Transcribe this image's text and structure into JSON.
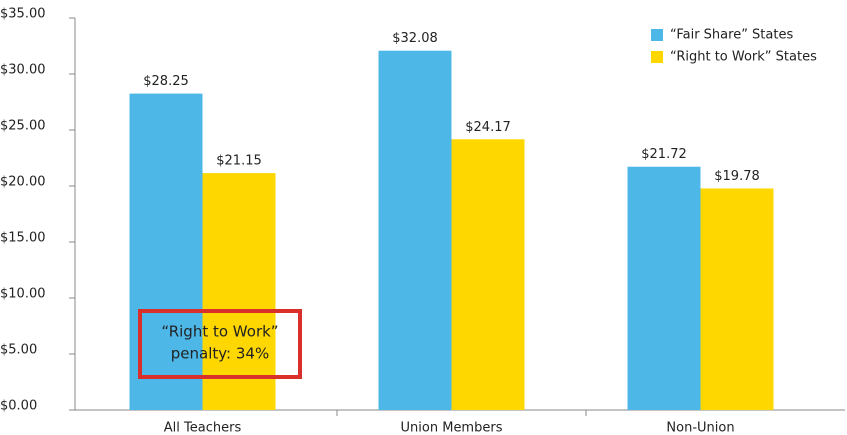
{
  "chart_data": {
    "type": "bar",
    "categories": [
      "All Teachers",
      "Union Members",
      "Non-Union"
    ],
    "series": [
      {
        "name": "“Fair Share” States",
        "color": "#4db8e8",
        "values": [
          28.25,
          32.08,
          21.72
        ],
        "value_labels": [
          "$28.25",
          "$32.08",
          "$21.72"
        ]
      },
      {
        "name": "“Right to Work” States",
        "color": "#ffd700",
        "values": [
          21.15,
          24.17,
          19.78
        ],
        "value_labels": [
          "$21.15",
          "$24.17",
          "$19.78"
        ]
      }
    ],
    "ylim": [
      0,
      35
    ],
    "yticks": [
      {
        "value": 0,
        "label": "$0.00"
      },
      {
        "value": 5,
        "label": "$5.00"
      },
      {
        "value": 10,
        "label": "$10.00"
      },
      {
        "value": 15,
        "label": "$15.00"
      },
      {
        "value": 20,
        "label": "$20.00"
      },
      {
        "value": 25,
        "label": "$25.00"
      },
      {
        "value": 30,
        "label": "$30.00"
      },
      {
        "value": 35,
        "label": "$35.00"
      }
    ],
    "legend": "upper right",
    "annotation": [
      "“Right to Work”",
      "penalty: 34%"
    ]
  }
}
